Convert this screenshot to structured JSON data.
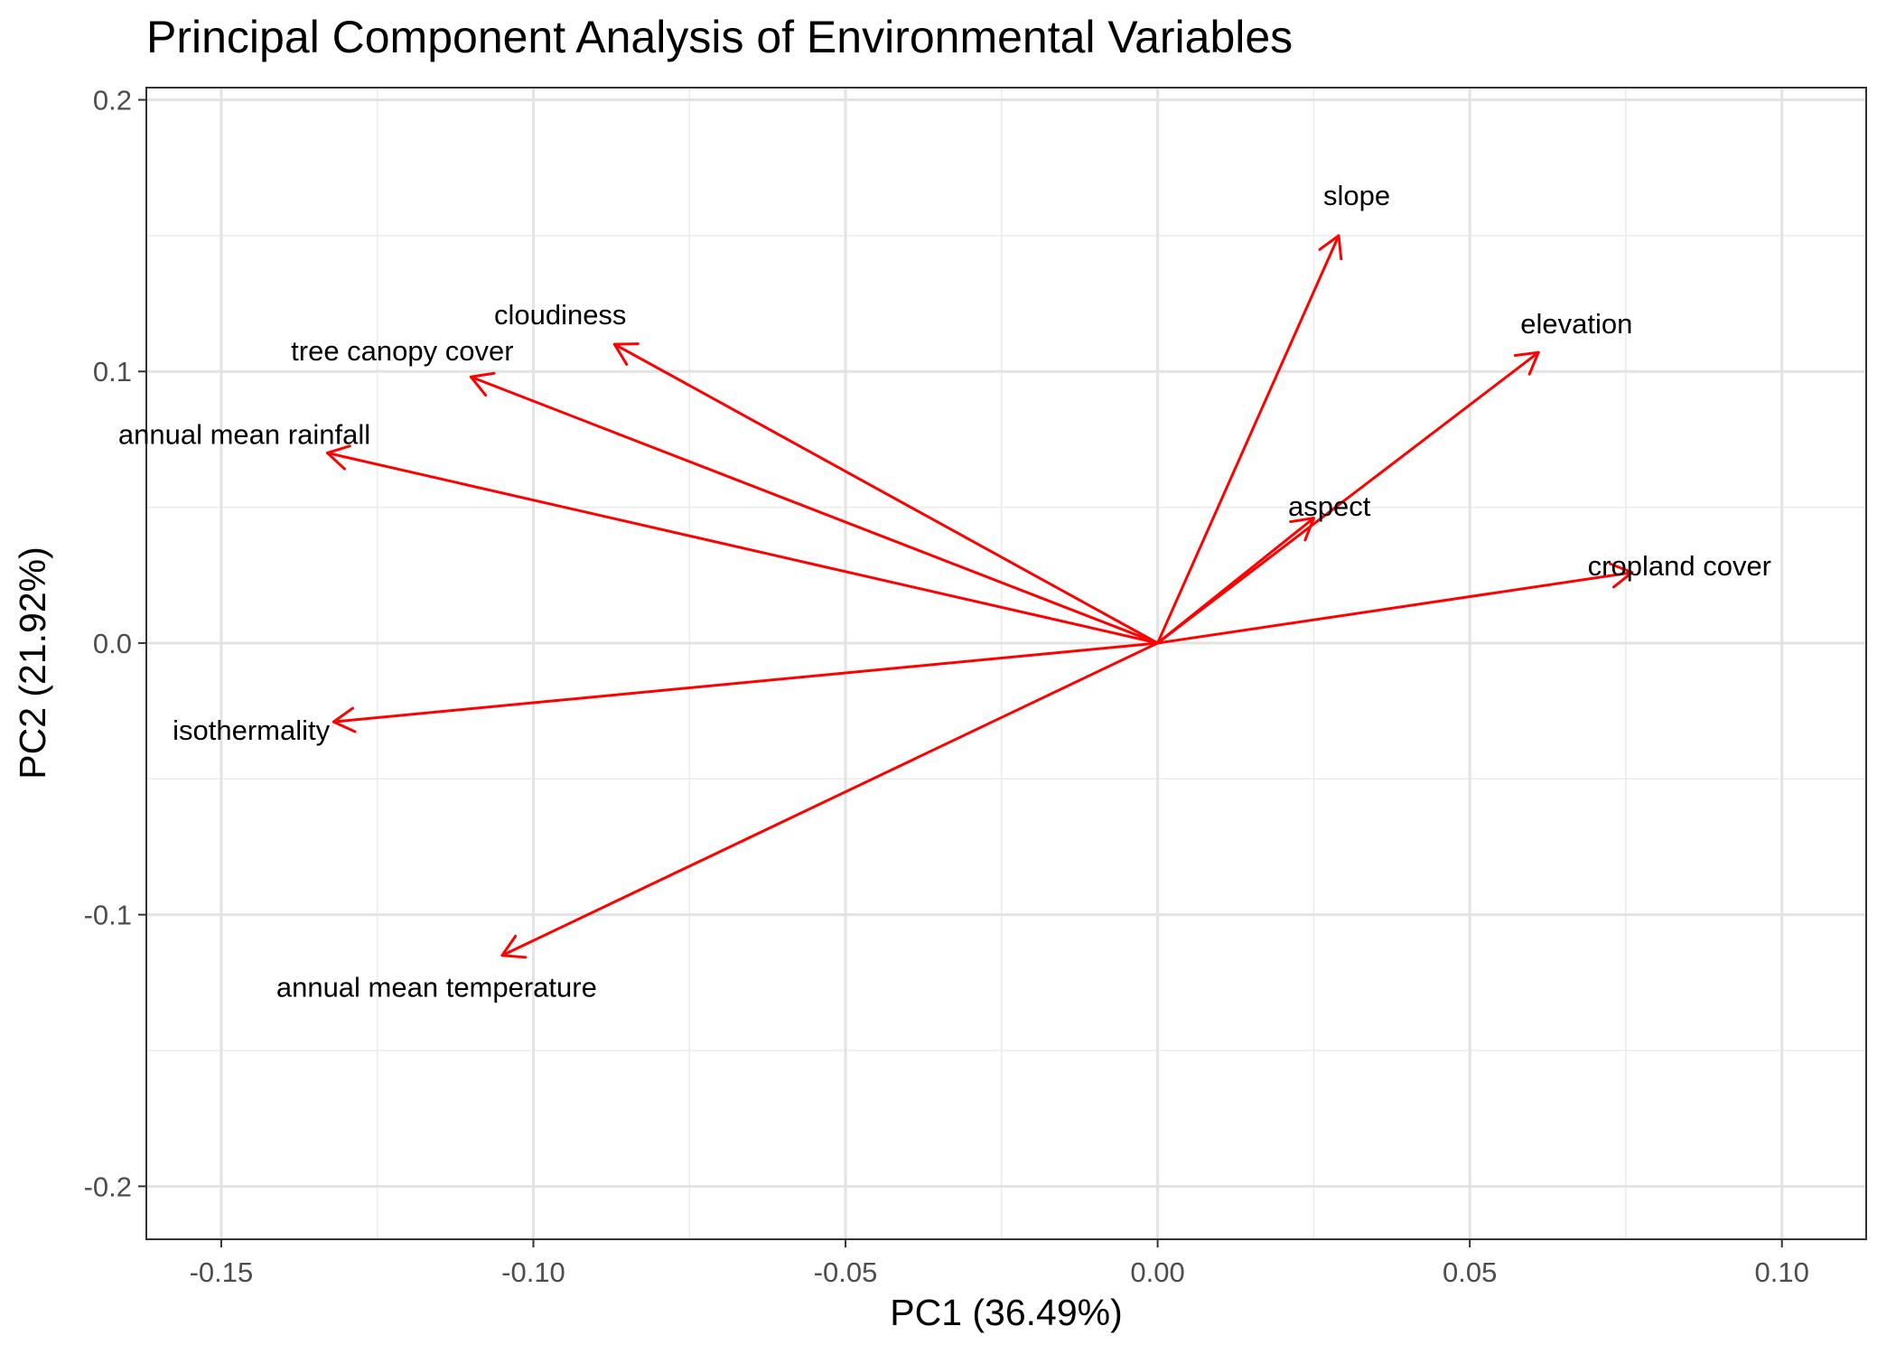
{
  "chart_data": {
    "type": "scatter",
    "subtype": "pca-loadings-biplot",
    "title": "Principal Component Analysis of Environmental Variables",
    "xlabel": "PC1 (36.49%)",
    "ylabel": "PC2 (21.92%)",
    "xlim": [
      -0.162,
      0.1135
    ],
    "ylim": [
      -0.2195,
      0.2045
    ],
    "x_ticks": [
      -0.15,
      -0.1,
      -0.05,
      0.0,
      0.05,
      0.1
    ],
    "x_tick_labels": [
      "-0.15",
      "-0.10",
      "-0.05",
      "0.00",
      "0.05",
      "0.10"
    ],
    "y_ticks": [
      -0.2,
      -0.1,
      0.0,
      0.1,
      0.2
    ],
    "y_tick_labels": [
      "-0.2",
      "-0.1",
      "0.0",
      "0.1",
      "0.2"
    ],
    "grid": true,
    "arrow_color": "#ff0000",
    "vectors": [
      {
        "name": "slope",
        "x": 0.029,
        "y": 0.15
      },
      {
        "name": "cloudiness",
        "x": -0.087,
        "y": 0.11
      },
      {
        "name": "tree canopy cover",
        "x": -0.11,
        "y": 0.098
      },
      {
        "name": "elevation",
        "x": 0.061,
        "y": 0.107
      },
      {
        "name": "annual mean rainfall",
        "x": -0.133,
        "y": 0.07
      },
      {
        "name": "aspect",
        "x": 0.025,
        "y": 0.046
      },
      {
        "name": "cropland cover",
        "x": 0.076,
        "y": 0.026
      },
      {
        "name": "isothermality",
        "x": -0.132,
        "y": -0.029
      },
      {
        "name": "annual mean temperature",
        "x": -0.105,
        "y": -0.115
      }
    ]
  }
}
